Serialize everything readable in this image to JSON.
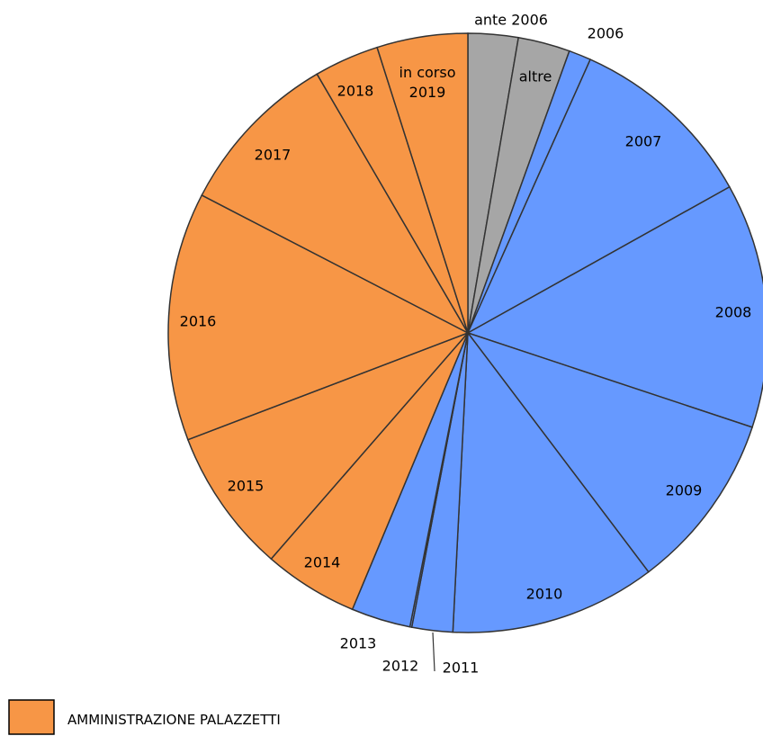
{
  "chart_data": {
    "type": "pie",
    "categories": [
      "ante 2006",
      "altre",
      "2006",
      "2007",
      "2008",
      "2009",
      "2010",
      "2011",
      "2012",
      "2013",
      "2014",
      "2015",
      "2016",
      "2017",
      "2018",
      "in corso 2019"
    ],
    "values": [
      2.7,
      2.8,
      1.2,
      10.2,
      13.2,
      9.6,
      11.1,
      2.2,
      0.1,
      3.2,
      5.1,
      7.8,
      13.4,
      9.0,
      3.5,
      4.9
    ],
    "colors": [
      "#a6a6a6",
      "#a6a6a6",
      "#6699ff",
      "#6699ff",
      "#6699ff",
      "#6699ff",
      "#6699ff",
      "#6699ff",
      "#6699ff",
      "#6699ff",
      "#f79646",
      "#f79646",
      "#f79646",
      "#f79646",
      "#f79646",
      "#f79646"
    ],
    "legend": [
      {
        "name": "AMMINISTRAZIONE PALAZZETTI",
        "color": "#f79646"
      }
    ]
  }
}
